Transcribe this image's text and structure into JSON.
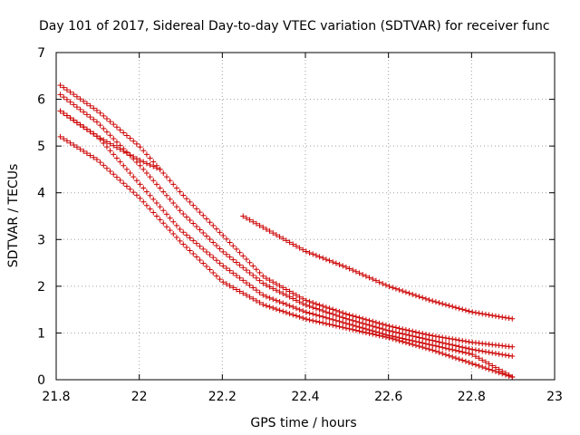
{
  "chart_data": {
    "type": "scatter",
    "title": "Day 101 of 2017, Sidereal Day-to-day VTEC variation (SDTVAR) for receiver func",
    "xlabel": "GPS time / hours",
    "ylabel": "SDTVAR / TECUs",
    "xlim": [
      21.8,
      23.0
    ],
    "ylim": [
      0,
      7
    ],
    "xticks": [
      21.8,
      22.0,
      22.2,
      22.4,
      22.6,
      22.8,
      23.0
    ],
    "xtick_labels": [
      "21.8",
      "22",
      "22.2",
      "22.4",
      "22.6",
      "22.8",
      "23"
    ],
    "yticks": [
      0,
      1,
      2,
      3,
      4,
      5,
      6,
      7
    ],
    "ytick_labels": [
      "0",
      "1",
      "2",
      "3",
      "4",
      "5",
      "6",
      "7"
    ],
    "grid": true,
    "marker": "plus",
    "color": "#cc0000",
    "step": 0.008,
    "series": [
      {
        "name": "s1",
        "x": [
          21.81,
          21.9,
          22.0,
          22.1,
          22.2,
          22.3,
          22.4,
          22.5,
          22.6,
          22.7,
          22.8,
          22.9
        ],
        "y": [
          6.3,
          5.75,
          5.0,
          4.0,
          3.1,
          2.2,
          1.7,
          1.4,
          1.15,
          0.95,
          0.8,
          0.7
        ]
      },
      {
        "name": "s2",
        "x": [
          21.81,
          21.9,
          22.0,
          22.1,
          22.2,
          22.3,
          22.4,
          22.5,
          22.6,
          22.7,
          22.8,
          22.9
        ],
        "y": [
          6.1,
          5.5,
          4.6,
          3.6,
          2.75,
          2.05,
          1.6,
          1.3,
          1.05,
          0.85,
          0.65,
          0.5
        ]
      },
      {
        "name": "s3",
        "x": [
          21.81,
          21.9,
          22.0,
          22.1,
          22.2,
          22.3,
          22.4,
          22.5,
          22.6,
          22.7,
          22.8,
          22.9
        ],
        "y": [
          5.75,
          5.2,
          4.2,
          3.2,
          2.45,
          1.8,
          1.45,
          1.2,
          0.95,
          0.75,
          0.55,
          0.05
        ]
      },
      {
        "name": "s4",
        "x": [
          21.81,
          21.9,
          22.0,
          22.1,
          22.2,
          22.3,
          22.4,
          22.5,
          22.6,
          22.7,
          22.8,
          22.9
        ],
        "y": [
          5.2,
          4.7,
          3.9,
          2.95,
          2.1,
          1.6,
          1.3,
          1.1,
          0.9,
          0.65,
          0.35,
          0.05
        ]
      },
      {
        "name": "s5",
        "x": [
          21.81,
          21.85,
          21.9,
          21.95,
          22.0,
          22.05
        ],
        "y": [
          5.75,
          5.5,
          5.2,
          4.95,
          4.7,
          4.5
        ]
      },
      {
        "name": "s6",
        "x": [
          22.25,
          22.3,
          22.4,
          22.5,
          22.6,
          22.7,
          22.8,
          22.9
        ],
        "y": [
          3.5,
          3.25,
          2.75,
          2.4,
          2.0,
          1.7,
          1.45,
          1.3
        ]
      }
    ]
  }
}
